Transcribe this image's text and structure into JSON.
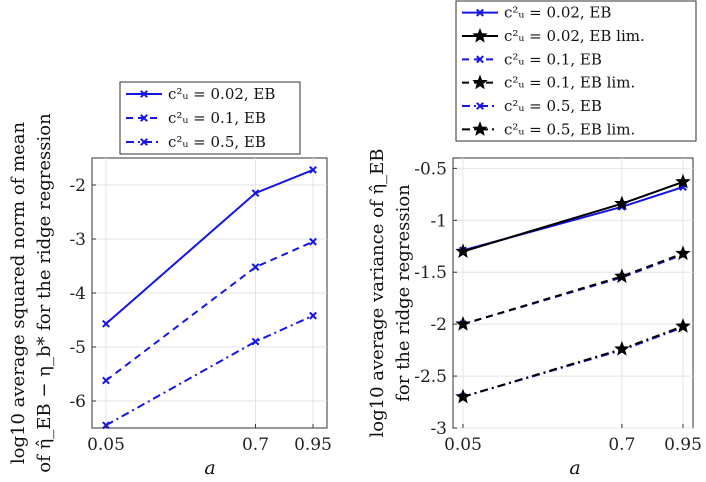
{
  "chart_data": [
    {
      "type": "line",
      "x": [
        0.05,
        0.7,
        0.95
      ],
      "x_tick_labels": [
        "0.05",
        "0.7",
        "0.95"
      ],
      "xlabel": "a",
      "ylabel_line1": "log10 average squared norm of mean",
      "ylabel_line2": "of η̂_EB − η_b* for the ridge regression",
      "ylim": [
        -6.5,
        -1.5
      ],
      "y_ticks": [
        -6,
        -5,
        -4,
        -3,
        -2
      ],
      "y_tick_labels": [
        "-6",
        "-5",
        "-4",
        "-3",
        "-2"
      ],
      "legend_position": "top-right (outside, above)",
      "series": [
        {
          "name": "c_u² = 0.02, EB",
          "legend_label": "c²ᵤ = 0.02, EB",
          "values": [
            -4.57,
            -2.15,
            -1.72
          ],
          "color": "#1515e6",
          "dash": "solid",
          "marker": "x"
        },
        {
          "name": "c_u² = 0.1, EB",
          "legend_label": "c²ᵤ = 0.1, EB",
          "values": [
            -5.62,
            -3.52,
            -3.05
          ],
          "color": "#1515e6",
          "dash": "dashed",
          "marker": "x"
        },
        {
          "name": "c_u² = 0.5, EB",
          "legend_label": "c²ᵤ = 0.5, EB",
          "values": [
            -6.45,
            -4.9,
            -4.42
          ],
          "color": "#1515e6",
          "dash": "dashdot",
          "marker": "x"
        }
      ]
    },
    {
      "type": "line",
      "x": [
        0.05,
        0.7,
        0.95
      ],
      "x_tick_labels": [
        "0.05",
        "0.7",
        "0.95"
      ],
      "xlabel": "a",
      "ylabel_line1": "log10 average variance of η̂_EB",
      "ylabel_line2": "for the ridge regression",
      "ylim": [
        -3,
        -0.4
      ],
      "y_ticks": [
        -3,
        -2.5,
        -2,
        -1.5,
        -1,
        -0.5
      ],
      "y_tick_labels": [
        "-3",
        "-2.5",
        "-2",
        "-1.5",
        "-1",
        "-0.5"
      ],
      "legend_position": "top (outside, above)",
      "series": [
        {
          "name": "c_u² = 0.02, EB",
          "legend_label": "c²ᵤ = 0.02, EB",
          "values": [
            -1.29,
            -0.87,
            -0.68
          ],
          "color": "#1515e6",
          "dash": "solid",
          "marker": "x"
        },
        {
          "name": "c_u² = 0.02, EB lim.",
          "legend_label": "c²ᵤ = 0.02, EB lim.",
          "values": [
            -1.3,
            -0.84,
            -0.63
          ],
          "color": "#000000",
          "dash": "solid",
          "marker": "star"
        },
        {
          "name": "c_u² = 0.1, EB",
          "legend_label": "c²ᵤ = 0.1, EB",
          "values": [
            -2.0,
            -1.55,
            -1.33
          ],
          "color": "#1515e6",
          "dash": "dashed",
          "marker": "x"
        },
        {
          "name": "c_u² = 0.1, EB lim.",
          "legend_label": "c²ᵤ = 0.1, EB lim.",
          "values": [
            -2.0,
            -1.54,
            -1.32
          ],
          "color": "#000000",
          "dash": "dashed",
          "marker": "star"
        },
        {
          "name": "c_u² = 0.5, EB",
          "legend_label": "c²ᵤ = 0.5, EB",
          "values": [
            -2.7,
            -2.25,
            -2.03
          ],
          "color": "#1515e6",
          "dash": "dashdot",
          "marker": "x"
        },
        {
          "name": "c_u² = 0.5, EB lim.",
          "legend_label": "c²ᵤ = 0.5, EB lim.",
          "values": [
            -2.7,
            -2.24,
            -2.02
          ],
          "color": "#000000",
          "dash": "dashdot",
          "marker": "star"
        }
      ]
    }
  ]
}
